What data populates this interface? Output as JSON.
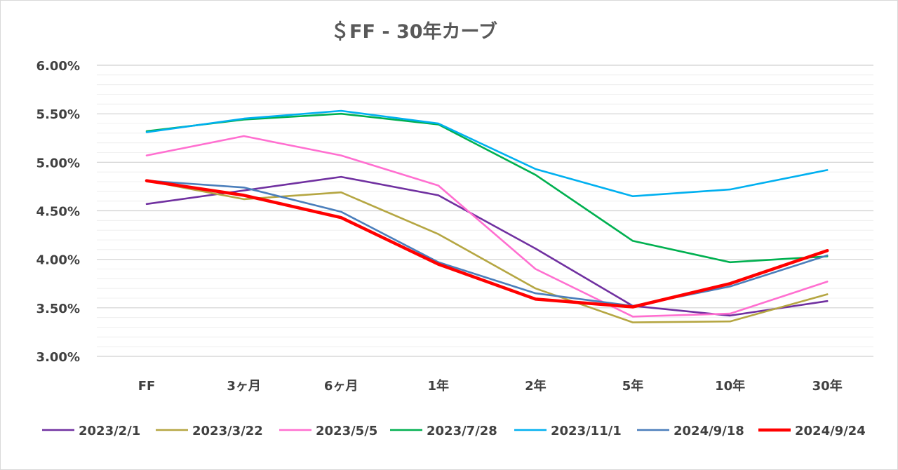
{
  "chart_data": {
    "type": "line",
    "title": "＄FF - 30年カーブ",
    "xlabel": "",
    "ylabel": "",
    "categories": [
      "FF",
      "3ヶ月",
      "6ヶ月",
      "1年",
      "2年",
      "5年",
      "10年",
      "30年"
    ],
    "y_ticks": [
      "6.00%",
      "5.50%",
      "5.00%",
      "4.50%",
      "4.00%",
      "3.50%",
      "3.00%"
    ],
    "ylim": [
      3.0,
      6.0
    ],
    "grid": true,
    "legend_position": "bottom",
    "series": [
      {
        "name": "2023/2/1",
        "color": "#7030a0",
        "values": [
          4.57,
          4.71,
          4.85,
          4.66,
          4.11,
          3.52,
          3.42,
          3.57
        ]
      },
      {
        "name": "2023/3/22",
        "color": "#b5a642",
        "values": [
          4.81,
          4.62,
          4.69,
          4.26,
          3.7,
          3.35,
          3.36,
          3.64
        ]
      },
      {
        "name": "2023/5/5",
        "color": "#ff6fd0",
        "values": [
          5.07,
          5.27,
          5.07,
          4.76,
          3.9,
          3.41,
          3.44,
          3.77
        ]
      },
      {
        "name": "2023/7/28",
        "color": "#00b050",
        "values": [
          5.32,
          5.44,
          5.5,
          5.39,
          4.87,
          4.19,
          3.97,
          4.03
        ]
      },
      {
        "name": "2023/11/1",
        "color": "#00b0f0",
        "values": [
          5.31,
          5.45,
          5.53,
          5.4,
          4.93,
          4.65,
          4.72,
          4.92
        ]
      },
      {
        "name": "2024/9/18",
        "color": "#4a7ebb",
        "values": [
          4.81,
          4.74,
          4.49,
          3.97,
          3.65,
          3.52,
          3.72,
          4.04
        ]
      },
      {
        "name": "2024/9/24",
        "color": "#ff0000",
        "values": [
          4.81,
          4.66,
          4.43,
          3.95,
          3.59,
          3.51,
          3.75,
          4.09
        ]
      }
    ]
  }
}
